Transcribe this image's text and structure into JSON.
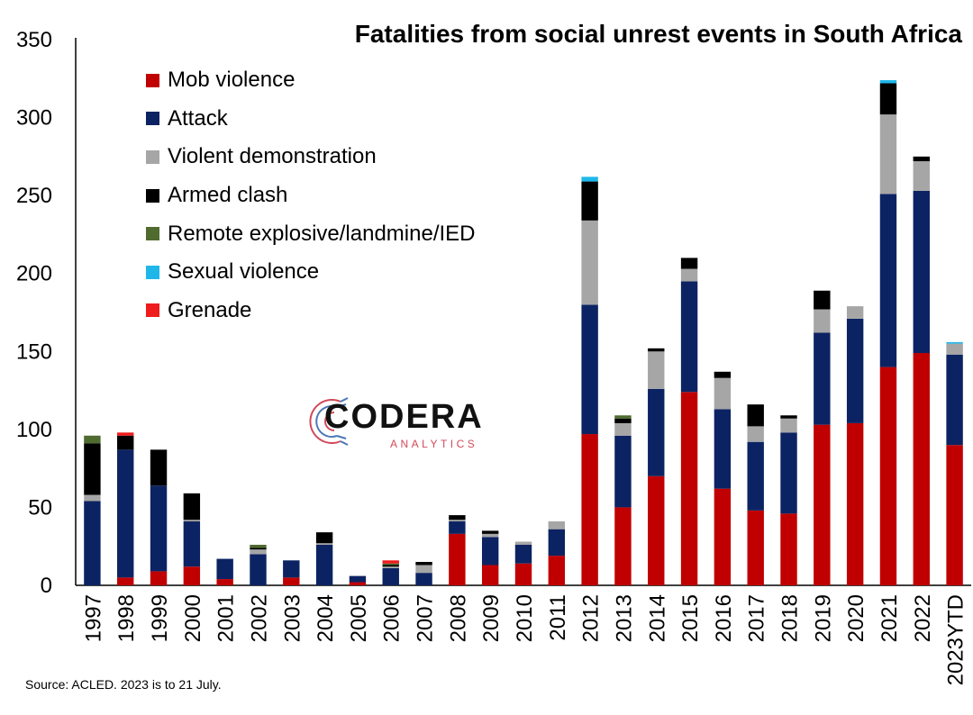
{
  "title": "Fatalities from social unrest events in South Africa",
  "source": "Source: ACLED. 2023 is to 21 July.",
  "logo": {
    "name": "CODERA",
    "sub": "ANALYTICS"
  },
  "colors": {
    "Mob violence": "#c00000",
    "Attack": "#0c2363",
    "Violent demonstration": "#a6a6a6",
    "Armed clash": "#000000",
    "Remote explosive/landmine/IED": "#4f6b2f",
    "Sexual violence": "#1fb7ea",
    "Grenade": "#ee1c1c"
  },
  "chart_data": {
    "type": "bar",
    "stacked": true,
    "title": "Fatalities from social unrest events in South Africa",
    "xlabel": "",
    "ylabel": "",
    "ylim": [
      0,
      350
    ],
    "yticks": [
      0,
      50,
      100,
      150,
      200,
      250,
      300,
      350
    ],
    "legend_position": "top-left",
    "categories": [
      "1997",
      "1998",
      "1999",
      "2000",
      "2001",
      "2002",
      "2003",
      "2004",
      "2005",
      "2006",
      "2007",
      "2008",
      "2009",
      "2010",
      "2011",
      "2012",
      "2013",
      "2014",
      "2015",
      "2016",
      "2017",
      "2018",
      "2019",
      "2020",
      "2021",
      "2022",
      "2023YTD"
    ],
    "series": [
      {
        "name": "Mob violence",
        "values": [
          0,
          5,
          9,
          12,
          4,
          0,
          5,
          0,
          2,
          0,
          0,
          33,
          13,
          14,
          19,
          97,
          50,
          70,
          124,
          62,
          48,
          46,
          103,
          104,
          140,
          149,
          90
        ]
      },
      {
        "name": "Attack",
        "values": [
          54,
          82,
          55,
          29,
          13,
          20,
          11,
          26,
          4,
          11,
          8,
          8,
          18,
          12,
          17,
          83,
          46,
          56,
          71,
          51,
          44,
          52,
          59,
          67,
          111,
          104,
          58
        ]
      },
      {
        "name": "Violent demonstration",
        "values": [
          4,
          0,
          0,
          1,
          0,
          3,
          0,
          1,
          0,
          1,
          5,
          1,
          2,
          2,
          5,
          54,
          8,
          24,
          8,
          20,
          10,
          9,
          15,
          8,
          51,
          19,
          7
        ]
      },
      {
        "name": "Armed clash",
        "values": [
          33,
          9,
          23,
          17,
          0,
          1,
          0,
          7,
          0,
          1,
          2,
          3,
          2,
          0,
          0,
          25,
          3,
          2,
          7,
          4,
          14,
          2,
          12,
          0,
          20,
          3,
          0
        ]
      },
      {
        "name": "Remote explosive/landmine/IED",
        "values": [
          5,
          0,
          0,
          0,
          0,
          2,
          0,
          0,
          0,
          1,
          0,
          0,
          0,
          0,
          0,
          0,
          2,
          0,
          0,
          0,
          0,
          0,
          0,
          0,
          0,
          0,
          0
        ]
      },
      {
        "name": "Sexual violence",
        "values": [
          0,
          0,
          0,
          0,
          0,
          0,
          0,
          0,
          0,
          0,
          0,
          0,
          0,
          0,
          0,
          3,
          0,
          0,
          0,
          0,
          0,
          0,
          0,
          0,
          2,
          0,
          1
        ]
      },
      {
        "name": "Grenade",
        "values": [
          0,
          2,
          0,
          0,
          0,
          0,
          0,
          0,
          0,
          2,
          0,
          0,
          0,
          0,
          0,
          0,
          0,
          0,
          0,
          0,
          0,
          0,
          0,
          0,
          0,
          0,
          0
        ]
      }
    ]
  }
}
